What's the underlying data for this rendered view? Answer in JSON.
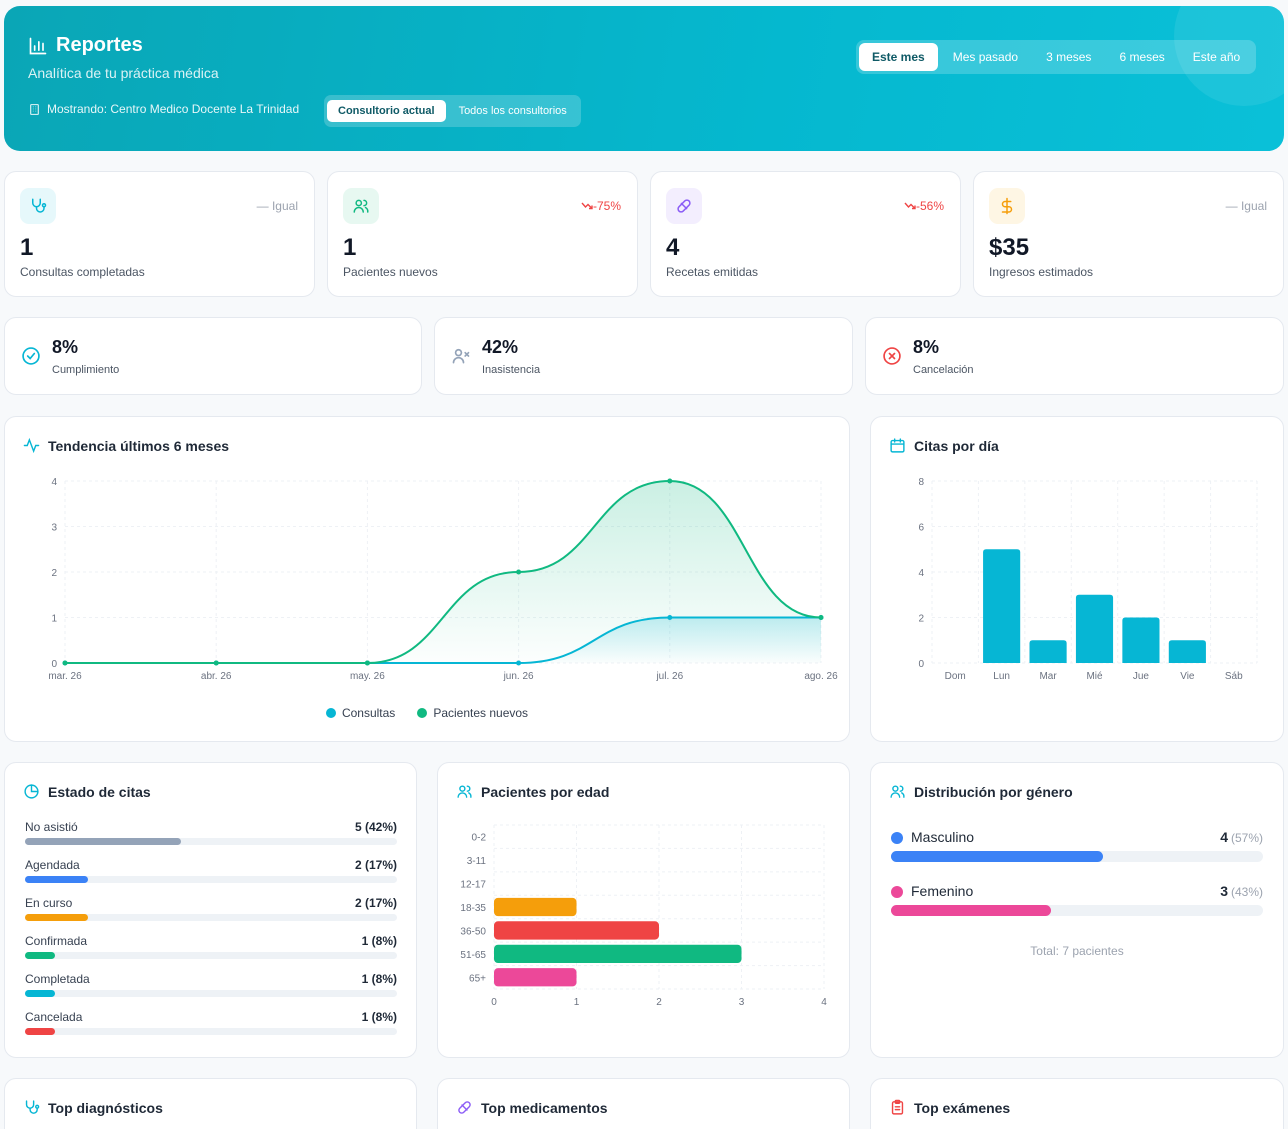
{
  "header": {
    "title": "Reportes",
    "subtitle": "Analítica de tu práctica médica",
    "showing": "Mostrando: Centro Medico Docente La Trinidad",
    "scope": [
      "Consultorio actual",
      "Todos los consultorios"
    ],
    "periods": [
      "Este mes",
      "Mes pasado",
      "3 meses",
      "6 meses",
      "Este año"
    ]
  },
  "kpis": [
    {
      "value": "1",
      "label": "Consultas completadas",
      "delta": "— Igual",
      "icon": "stethoscope-icon"
    },
    {
      "value": "1",
      "label": "Pacientes nuevos",
      "delta": "-75%",
      "icon": "users-icon"
    },
    {
      "value": "4",
      "label": "Recetas emitidas",
      "delta": "-56%",
      "icon": "pill-icon"
    },
    {
      "value": "$35",
      "label": "Ingresos estimados",
      "delta": "— Igual",
      "icon": "dollar-icon"
    }
  ],
  "rates": [
    {
      "value": "8%",
      "label": "Cumplimiento",
      "icon": "check-circle-icon"
    },
    {
      "value": "42%",
      "label": "Inasistencia",
      "icon": "user-x-icon"
    },
    {
      "value": "8%",
      "label": "Cancelación",
      "icon": "x-circle-icon"
    }
  ],
  "colors": {
    "accent": "#06b6d4",
    "green": "#10b981",
    "gray": "#94a3b8",
    "blue": "#3b82f6",
    "orange": "#f59e0b",
    "red": "#ef4444",
    "pink": "#ec4899",
    "up_bad": "#ef4444"
  },
  "trend": {
    "title": "Tendencia últimos 6 meses"
  },
  "daily": {
    "title": "Citas por día"
  },
  "status": {
    "title": "Estado de citas",
    "items": [
      {
        "name": "No asistió",
        "count": "5 (42%)",
        "pct": 0.42,
        "color": "#94a3b8"
      },
      {
        "name": "Agendada",
        "count": "2 (17%)",
        "pct": 0.17,
        "color": "#3b82f6"
      },
      {
        "name": "En curso",
        "count": "2 (17%)",
        "pct": 0.17,
        "color": "#f59e0b"
      },
      {
        "name": "Confirmada",
        "count": "1 (8%)",
        "pct": 0.08,
        "color": "#10b981"
      },
      {
        "name": "Completada",
        "count": "1 (8%)",
        "pct": 0.08,
        "color": "#06b6d4"
      },
      {
        "name": "Cancelada",
        "count": "1 (8%)",
        "pct": 0.08,
        "color": "#ef4444"
      }
    ]
  },
  "age": {
    "title": "Pacientes por edad"
  },
  "gender": {
    "title": "Distribución por género",
    "items": [
      {
        "name": "Masculino",
        "count": "4",
        "pct_label": "(57%)",
        "pct": 0.57,
        "color": "#3b82f6"
      },
      {
        "name": "Femenino",
        "count": "3",
        "pct_label": "(43%)",
        "pct": 0.43,
        "color": "#ec4899"
      }
    ],
    "total": "Total: 7 pacientes"
  },
  "bottom": [
    "Top diagnósticos",
    "Top medicamentos",
    "Top exámenes"
  ],
  "chart_data": [
    {
      "type": "area",
      "x": [
        "mar. 26",
        "abr. 26",
        "may. 26",
        "jun. 26",
        "jul. 26",
        "ago. 26"
      ],
      "series": [
        {
          "name": "Consultas",
          "values": [
            0,
            0,
            0,
            0,
            1,
            1
          ],
          "color": "#06b6d4"
        },
        {
          "name": "Pacientes nuevos",
          "values": [
            0,
            0,
            0,
            2,
            4,
            1
          ],
          "color": "#10b981"
        }
      ],
      "ylim": [
        0,
        4
      ],
      "yticks": [
        0,
        1,
        2,
        3,
        4
      ],
      "grid": true,
      "legend": "bottom"
    },
    {
      "type": "bar",
      "categories": [
        "Dom",
        "Lun",
        "Mar",
        "Mié",
        "Jue",
        "Vie",
        "Sáb"
      ],
      "values": [
        0,
        5,
        1,
        3,
        2,
        1,
        0
      ],
      "ylim": [
        0,
        8
      ],
      "yticks": [
        0,
        2,
        4,
        6,
        8
      ],
      "color": "#06b6d4",
      "grid": true
    },
    {
      "type": "bar",
      "orientation": "horizontal",
      "categories": [
        "0-2",
        "3-11",
        "12-17",
        "18-35",
        "36-50",
        "51-65",
        "65+"
      ],
      "values": [
        0,
        0,
        0,
        1,
        2,
        3,
        1
      ],
      "colors": [
        "#06b6d4",
        "#3b82f6",
        "#8b5cf6",
        "#f59e0b",
        "#ef4444",
        "#10b981",
        "#ec4899"
      ],
      "xlim": [
        0,
        4
      ],
      "xticks": [
        0,
        1,
        2,
        3,
        4
      ],
      "grid": true
    }
  ]
}
